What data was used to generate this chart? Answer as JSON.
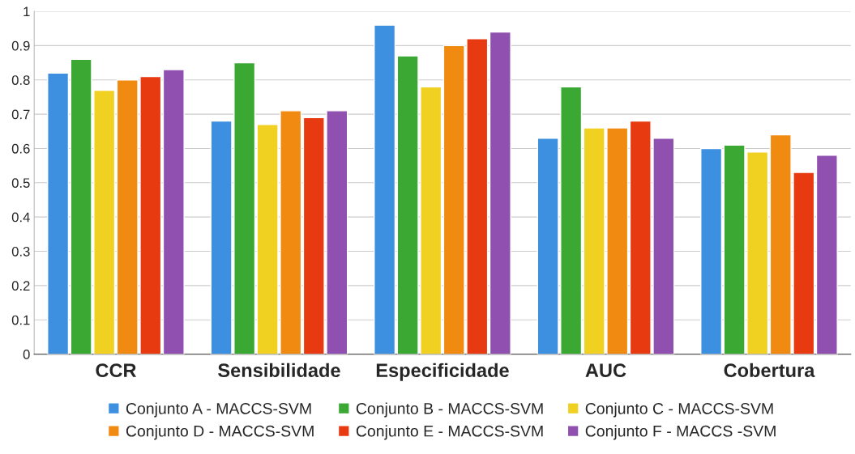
{
  "chart_data": {
    "type": "bar",
    "categories": [
      "CCR",
      "Sensibilidade",
      "Especificidade",
      "AUC",
      "Cobertura"
    ],
    "series": [
      {
        "name": "Conjunto A - MACCS-SVM",
        "color": "#3d8fe0",
        "values": [
          0.82,
          0.68,
          0.96,
          0.63,
          0.6
        ]
      },
      {
        "name": "Conjunto B - MACCS-SVM",
        "color": "#3aa832",
        "values": [
          0.86,
          0.85,
          0.87,
          0.78,
          0.61
        ]
      },
      {
        "name": "Conjunto C - MACCS-SVM",
        "color": "#f0d020",
        "values": [
          0.77,
          0.67,
          0.78,
          0.66,
          0.59
        ]
      },
      {
        "name": "Conjunto D - MACCS-SVM",
        "color": "#f08a10",
        "values": [
          0.8,
          0.71,
          0.9,
          0.66,
          0.64
        ]
      },
      {
        "name": "Conjunto E - MACCS-SVM",
        "color": "#e83a10",
        "values": [
          0.81,
          0.69,
          0.92,
          0.68,
          0.53
        ]
      },
      {
        "name": "Conjunto F - MACCS -SVM",
        "color": "#8f50b0",
        "values": [
          0.83,
          0.71,
          0.94,
          0.63,
          0.58
        ]
      }
    ],
    "ylim": [
      0,
      1
    ],
    "yticks": [
      0,
      0.1,
      0.2,
      0.3,
      0.4,
      0.5,
      0.6,
      0.7,
      0.8,
      0.9,
      1
    ],
    "grid": "y",
    "legend": "bottom"
  }
}
